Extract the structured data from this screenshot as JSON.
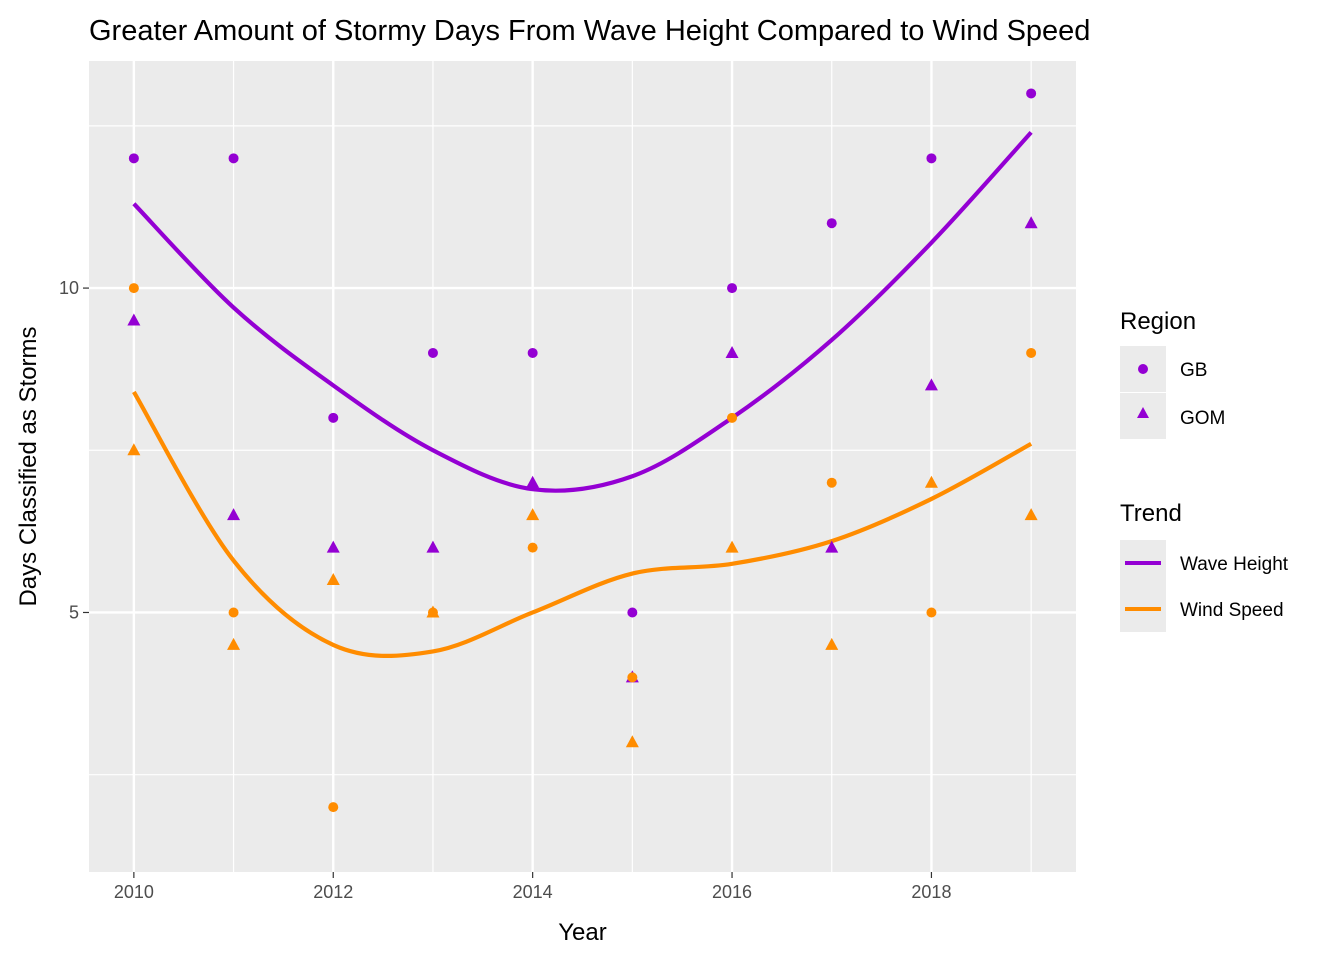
{
  "chart_data": {
    "type": "scatter",
    "title": "Greater Amount of Stormy Days From Wave Height Compared to Wind Speed",
    "xlabel": "Year",
    "ylabel": "Days Classified as Storms",
    "xlim": [
      2009.55,
      2019.45
    ],
    "ylim": [
      1.0,
      13.5
    ],
    "x_ticks": [
      2010,
      2012,
      2014,
      2016,
      2018
    ],
    "x_tick_labels": [
      "2010",
      "2012",
      "2014",
      "2016",
      "2018"
    ],
    "y_ticks": [
      5,
      10
    ],
    "y_tick_labels": [
      "5",
      "10"
    ],
    "grid": true,
    "legend_position": "right",
    "legends": {
      "region": {
        "title": "Region",
        "entries": [
          {
            "label": "GB",
            "shape": "circle"
          },
          {
            "label": "GOM",
            "shape": "triangle"
          }
        ]
      },
      "trend": {
        "title": "Trend",
        "entries": [
          {
            "label": "Wave Height",
            "color": "#9400D3"
          },
          {
            "label": "Wind Speed",
            "color": "#FF8C00"
          }
        ]
      }
    },
    "series": [
      {
        "name": "Wave Height",
        "color": "#9400D3",
        "points": [
          {
            "region": "GB",
            "x": [
              2010,
              2011,
              2012,
              2013,
              2014,
              2015,
              2016,
              2017,
              2018,
              2019
            ],
            "y": [
              12,
              12,
              8,
              9,
              9,
              5,
              10,
              11,
              12,
              13
            ]
          },
          {
            "region": "GOM",
            "x": [
              2010,
              2011,
              2012,
              2013,
              2014,
              2015,
              2016,
              2017,
              2018,
              2019
            ],
            "y": [
              9.5,
              6.5,
              6,
              6,
              7,
              4,
              9,
              6,
              8.5,
              11
            ]
          }
        ],
        "trend": {
          "x": [
            2010,
            2011,
            2012,
            2013,
            2014,
            2015,
            2016,
            2017,
            2018,
            2019
          ],
          "y": [
            11.3,
            9.7,
            8.5,
            7.5,
            6.9,
            7.1,
            8.0,
            9.2,
            10.7,
            12.4
          ]
        }
      },
      {
        "name": "Wind Speed",
        "color": "#FF8C00",
        "points": [
          {
            "region": "GB",
            "x": [
              2010,
              2011,
              2012,
              2013,
              2014,
              2015,
              2016,
              2017,
              2018,
              2019
            ],
            "y": [
              10,
              5,
              2,
              5,
              6,
              4,
              8,
              7,
              5,
              9
            ]
          },
          {
            "region": "GOM",
            "x": [
              2010,
              2011,
              2012,
              2013,
              2014,
              2015,
              2016,
              2017,
              2018,
              2019
            ],
            "y": [
              7.5,
              4.5,
              5.5,
              5,
              6.5,
              3,
              6,
              4.5,
              7,
              6.5
            ]
          }
        ],
        "trend": {
          "x": [
            2010,
            2011,
            2012,
            2013,
            2014,
            2015,
            2016,
            2017,
            2018,
            2019
          ],
          "y": [
            8.4,
            5.8,
            4.5,
            4.4,
            5.0,
            5.6,
            5.75,
            6.1,
            6.75,
            7.6
          ]
        }
      }
    ]
  }
}
